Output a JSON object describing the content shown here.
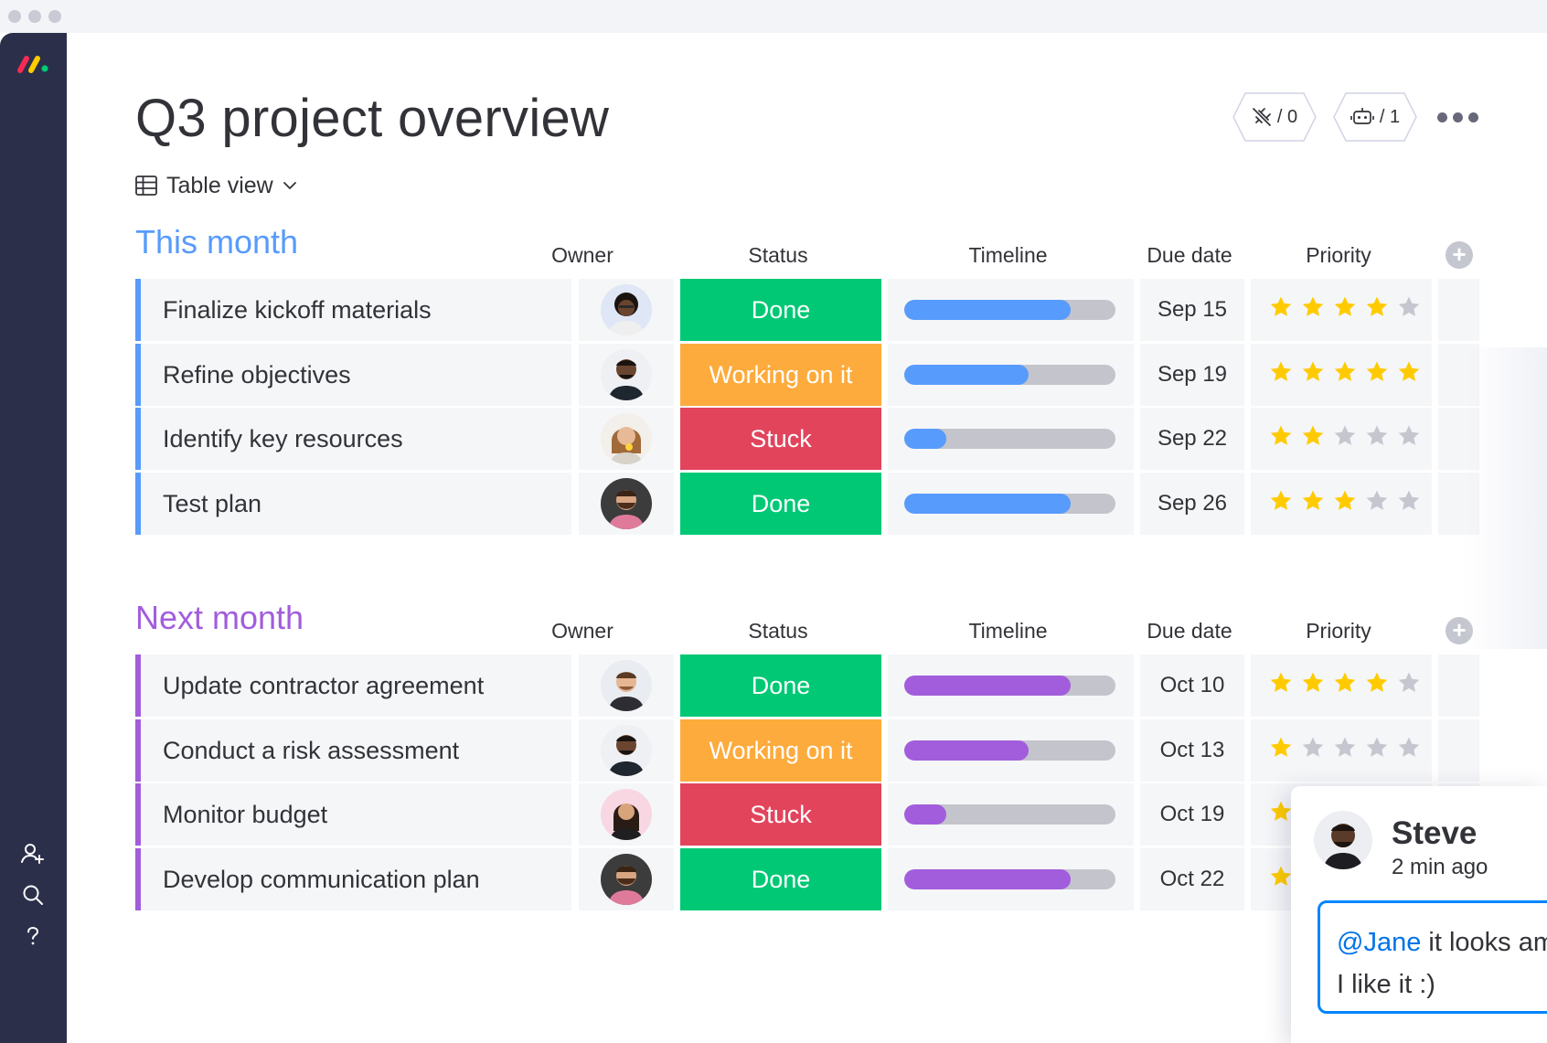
{
  "page": {
    "title": "Q3 project overview",
    "view_label": "Table view"
  },
  "header_buttons": {
    "integrations_count": "/ 0",
    "automations_count": "/ 1"
  },
  "columns": {
    "owner": "Owner",
    "status": "Status",
    "timeline": "Timeline",
    "due_date": "Due date",
    "priority": "Priority"
  },
  "colors": {
    "this_month": "#579bfc",
    "next_month": "#a25ddc",
    "done": "#00c875",
    "working": "#fdab3d",
    "stuck": "#e2445c",
    "star_on": "#ffcb00",
    "star_off": "#c5c7d0"
  },
  "groups": [
    {
      "title": "This month",
      "color": "#579bfc",
      "items": [
        {
          "name": "Finalize kickoff materials",
          "status": "Done",
          "status_color": "#00c875",
          "timeline_progress": 0.79,
          "due": "Sep 15",
          "priority": 4,
          "avatar": "woman-dark"
        },
        {
          "name": "Refine objectives",
          "status": "Working on it",
          "status_color": "#fdab3d",
          "timeline_progress": 0.59,
          "due": "Sep 19",
          "priority": 5,
          "avatar": "man-dark"
        },
        {
          "name": "Identify key resources",
          "status": "Stuck",
          "status_color": "#e2445c",
          "timeline_progress": 0.2,
          "due": "Sep 22",
          "priority": 2,
          "avatar": "woman-light"
        },
        {
          "name": "Test plan",
          "status": "Done",
          "status_color": "#00c875",
          "timeline_progress": 0.79,
          "due": "Sep 26",
          "priority": 3,
          "avatar": "man-beard"
        }
      ]
    },
    {
      "title": "Next month",
      "color": "#a25ddc",
      "items": [
        {
          "name": "Update contractor agreement",
          "status": "Done",
          "status_color": "#00c875",
          "timeline_progress": 0.79,
          "due": "Oct 10",
          "priority": 4,
          "avatar": "man-light"
        },
        {
          "name": "Conduct a risk assessment",
          "status": "Working on it",
          "status_color": "#fdab3d",
          "timeline_progress": 0.59,
          "due": "Oct 13",
          "priority": 1,
          "avatar": "man-dark"
        },
        {
          "name": "Monitor budget",
          "status": "Stuck",
          "status_color": "#e2445c",
          "timeline_progress": 0.2,
          "due": "Oct 19",
          "priority": 1,
          "avatar": "woman-brown"
        },
        {
          "name": "Develop communication plan",
          "status": "Done",
          "status_color": "#00c875",
          "timeline_progress": 0.79,
          "due": "Oct 22",
          "priority": 1,
          "avatar": "man-beard"
        }
      ]
    }
  ],
  "comment": {
    "author": "Steve",
    "time": "2 min ago",
    "mention": "@Jane",
    "text_line1": " it looks amazing!",
    "text_line2": "I like it :)"
  },
  "icons": {
    "logo": "monday-logo",
    "sidebar": [
      "invite-user-icon",
      "search-icon",
      "help-icon"
    ],
    "header": [
      "integrations-icon",
      "automations-robot-icon",
      "more-icon"
    ]
  }
}
